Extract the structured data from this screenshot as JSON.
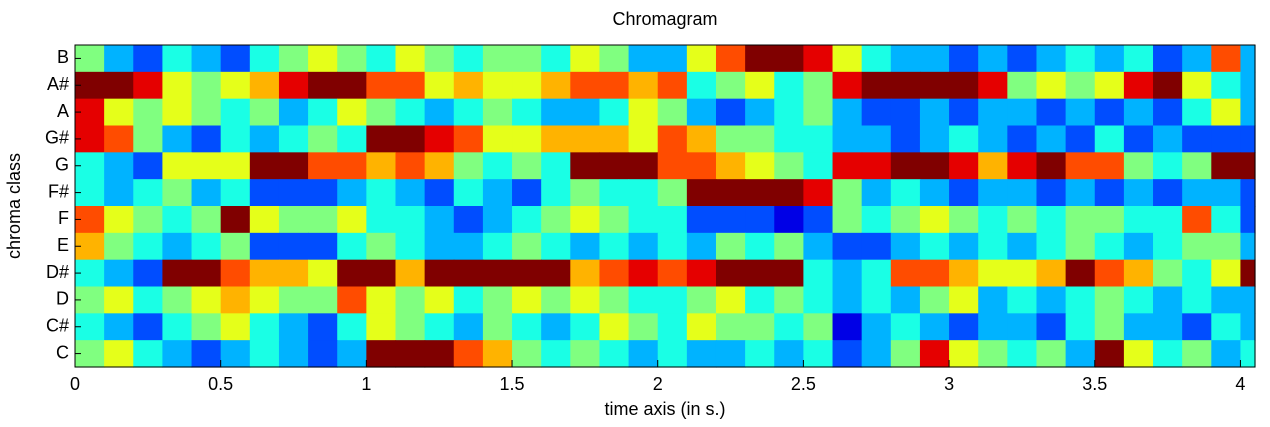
{
  "chart_data": {
    "type": "heatmap",
    "title": "Chromagram",
    "x_label": "time axis (in s.)",
    "y_label": "chroma class",
    "rows": [
      "B",
      "A#",
      "A",
      "G#",
      "G",
      "F#",
      "F",
      "E",
      "D#",
      "D",
      "C#",
      "C"
    ],
    "bins": [
      0,
      0.1,
      0.2,
      0.3,
      0.4,
      0.5,
      0.6,
      0.7,
      0.8,
      0.9,
      1.0,
      1.1,
      1.2,
      1.3,
      1.4,
      1.5,
      1.6,
      1.7,
      1.8,
      1.9,
      2.0,
      2.1,
      2.2,
      2.3,
      2.4,
      2.5,
      2.6,
      2.7,
      2.8,
      2.9,
      3.0,
      3.1,
      3.2,
      3.3,
      3.4,
      3.5,
      3.6,
      3.7,
      3.8,
      3.9,
      4.0,
      4.05
    ],
    "values": [
      [
        0.5,
        0.3,
        0.2,
        0.4,
        0.3,
        0.2,
        0.4,
        0.5,
        0.6,
        0.5,
        0.4,
        0.6,
        0.5,
        0.4,
        0.5,
        0.5,
        0.4,
        0.6,
        0.5,
        0.3,
        0.3,
        0.6,
        0.8,
        1.0,
        1.0,
        0.9,
        0.6,
        0.4,
        0.3,
        0.3,
        0.2,
        0.3,
        0.2,
        0.3,
        0.4,
        0.3,
        0.4,
        0.2,
        0.3,
        0.8,
        0.3
      ],
      [
        1.0,
        1.0,
        0.9,
        0.6,
        0.5,
        0.6,
        0.7,
        0.9,
        1.0,
        1.0,
        0.8,
        0.8,
        0.6,
        0.7,
        0.6,
        0.6,
        0.7,
        0.8,
        0.8,
        0.7,
        0.8,
        0.4,
        0.5,
        0.6,
        0.4,
        0.5,
        0.9,
        1.0,
        1.0,
        1.0,
        1.0,
        0.9,
        0.5,
        0.6,
        0.5,
        0.6,
        0.9,
        1.0,
        0.6,
        0.4,
        0.3
      ],
      [
        0.9,
        0.6,
        0.5,
        0.6,
        0.5,
        0.4,
        0.5,
        0.3,
        0.4,
        0.6,
        0.5,
        0.4,
        0.3,
        0.4,
        0.5,
        0.4,
        0.3,
        0.3,
        0.4,
        0.6,
        0.5,
        0.3,
        0.2,
        0.3,
        0.4,
        0.5,
        0.3,
        0.2,
        0.2,
        0.3,
        0.2,
        0.3,
        0.3,
        0.2,
        0.3,
        0.2,
        0.3,
        0.2,
        0.4,
        0.6,
        0.3
      ],
      [
        0.9,
        0.8,
        0.5,
        0.3,
        0.2,
        0.4,
        0.3,
        0.4,
        0.5,
        0.4,
        1.0,
        1.0,
        0.9,
        0.8,
        0.6,
        0.6,
        0.7,
        0.7,
        0.7,
        0.6,
        0.8,
        0.7,
        0.5,
        0.5,
        0.4,
        0.4,
        0.3,
        0.3,
        0.2,
        0.3,
        0.4,
        0.3,
        0.2,
        0.3,
        0.2,
        0.4,
        0.2,
        0.3,
        0.2,
        0.2,
        0.2
      ],
      [
        0.4,
        0.3,
        0.2,
        0.6,
        0.6,
        0.6,
        1.0,
        1.0,
        0.8,
        0.8,
        0.7,
        0.8,
        0.7,
        0.5,
        0.4,
        0.5,
        0.4,
        1.0,
        1.0,
        1.0,
        0.8,
        0.8,
        0.7,
        0.6,
        0.5,
        0.4,
        0.9,
        0.9,
        1.0,
        1.0,
        0.9,
        0.7,
        0.9,
        1.0,
        0.8,
        0.8,
        0.5,
        0.4,
        0.5,
        1.0,
        1.0
      ],
      [
        0.4,
        0.3,
        0.4,
        0.5,
        0.3,
        0.4,
        0.2,
        0.2,
        0.2,
        0.3,
        0.4,
        0.3,
        0.2,
        0.4,
        0.3,
        0.2,
        0.4,
        0.5,
        0.4,
        0.4,
        0.5,
        1.0,
        1.0,
        1.0,
        1.0,
        0.9,
        0.5,
        0.3,
        0.4,
        0.3,
        0.2,
        0.3,
        0.3,
        0.2,
        0.3,
        0.2,
        0.3,
        0.2,
        0.3,
        0.3,
        0.2
      ],
      [
        0.8,
        0.6,
        0.5,
        0.4,
        0.5,
        1.0,
        0.6,
        0.5,
        0.5,
        0.6,
        0.4,
        0.4,
        0.3,
        0.2,
        0.3,
        0.4,
        0.5,
        0.6,
        0.5,
        0.4,
        0.4,
        0.2,
        0.2,
        0.2,
        0.1,
        0.2,
        0.5,
        0.4,
        0.5,
        0.6,
        0.5,
        0.4,
        0.5,
        0.4,
        0.5,
        0.5,
        0.4,
        0.4,
        0.8,
        0.4,
        0.2
      ],
      [
        0.7,
        0.5,
        0.4,
        0.3,
        0.4,
        0.5,
        0.2,
        0.2,
        0.2,
        0.4,
        0.5,
        0.4,
        0.3,
        0.3,
        0.4,
        0.5,
        0.4,
        0.3,
        0.4,
        0.3,
        0.4,
        0.3,
        0.5,
        0.4,
        0.5,
        0.3,
        0.2,
        0.2,
        0.3,
        0.4,
        0.3,
        0.4,
        0.3,
        0.4,
        0.5,
        0.4,
        0.3,
        0.4,
        0.5,
        0.5,
        0.3
      ],
      [
        0.4,
        0.3,
        0.2,
        1.0,
        1.0,
        0.8,
        0.7,
        0.7,
        0.6,
        1.0,
        1.0,
        0.7,
        1.0,
        1.0,
        1.0,
        1.0,
        1.0,
        0.7,
        0.8,
        0.9,
        0.8,
        0.9,
        1.0,
        1.0,
        1.0,
        0.4,
        0.3,
        0.4,
        0.8,
        0.8,
        0.7,
        0.6,
        0.6,
        0.7,
        1.0,
        0.8,
        0.7,
        0.5,
        0.4,
        0.6,
        1.0
      ],
      [
        0.5,
        0.6,
        0.4,
        0.5,
        0.6,
        0.7,
        0.6,
        0.5,
        0.5,
        0.8,
        0.6,
        0.5,
        0.6,
        0.4,
        0.5,
        0.6,
        0.5,
        0.6,
        0.5,
        0.4,
        0.4,
        0.5,
        0.6,
        0.4,
        0.5,
        0.4,
        0.3,
        0.4,
        0.3,
        0.5,
        0.6,
        0.3,
        0.4,
        0.3,
        0.4,
        0.5,
        0.4,
        0.3,
        0.4,
        0.3,
        0.3
      ],
      [
        0.4,
        0.3,
        0.2,
        0.4,
        0.5,
        0.6,
        0.4,
        0.3,
        0.2,
        0.4,
        0.6,
        0.5,
        0.4,
        0.3,
        0.5,
        0.4,
        0.3,
        0.4,
        0.6,
        0.5,
        0.4,
        0.6,
        0.5,
        0.5,
        0.4,
        0.5,
        0.1,
        0.3,
        0.4,
        0.3,
        0.2,
        0.3,
        0.3,
        0.2,
        0.4,
        0.5,
        0.3,
        0.3,
        0.2,
        0.4,
        0.3
      ],
      [
        0.5,
        0.6,
        0.4,
        0.3,
        0.2,
        0.3,
        0.4,
        0.3,
        0.2,
        0.3,
        1.0,
        1.0,
        1.0,
        0.8,
        0.7,
        0.5,
        0.4,
        0.5,
        0.4,
        0.3,
        0.4,
        0.3,
        0.3,
        0.4,
        0.3,
        0.4,
        0.2,
        0.3,
        0.5,
        0.9,
        0.6,
        0.5,
        0.4,
        0.5,
        0.3,
        1.0,
        0.6,
        0.4,
        0.5,
        0.3,
        0.4
      ]
    ],
    "colormap": "jet",
    "zlim": [
      0,
      1
    ],
    "xlim": [
      0,
      4.05
    ],
    "xticks": [
      0,
      0.5,
      1,
      1.5,
      2,
      2.5,
      3,
      3.5,
      4
    ]
  }
}
